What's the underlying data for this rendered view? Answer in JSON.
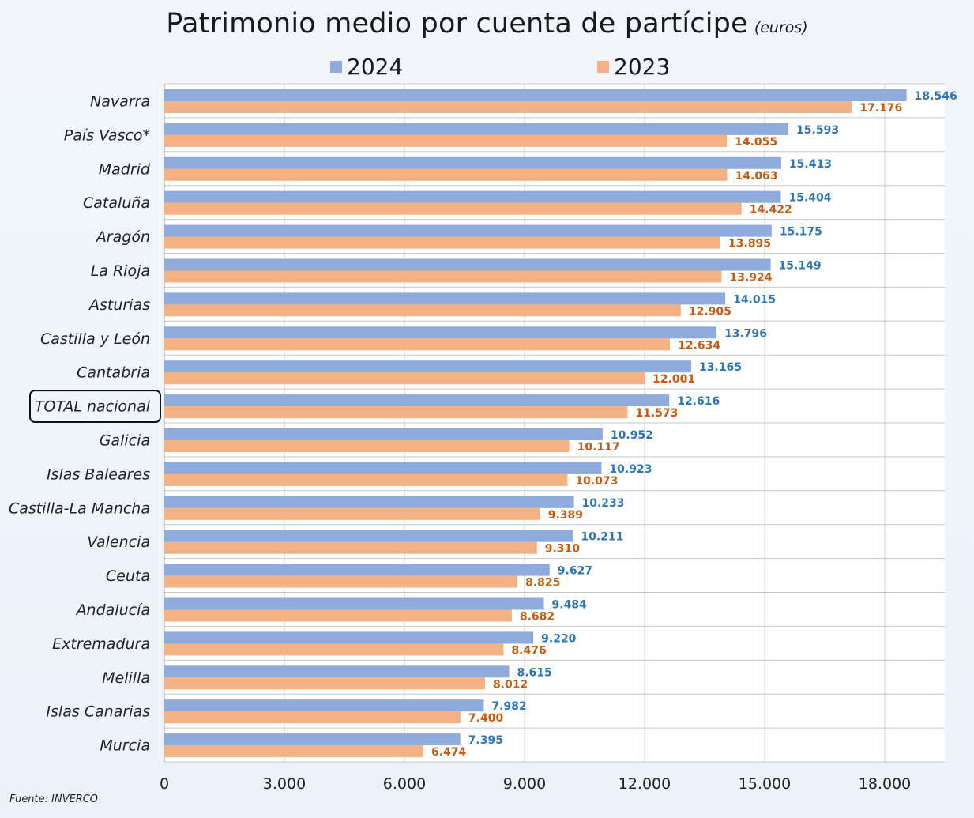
{
  "chart_data": {
    "type": "bar",
    "orientation": "horizontal",
    "title": "Patrimonio medio por cuenta de partícipe",
    "title_unit": "(euros)",
    "categories": [
      "Navarra",
      "País Vasco*",
      "Madrid",
      "Cataluña",
      "Aragón",
      "La Rioja",
      "Asturias",
      "Castilla y León",
      "Cantabria",
      "TOTAL nacional",
      "Galicia",
      "Islas Baleares",
      "Castilla-La Mancha",
      "Valencia",
      "Ceuta",
      "Andalucía",
      "Extremadura",
      "Melilla",
      "Islas Canarias",
      "Murcia"
    ],
    "highlighted_category": "TOTAL nacional",
    "series": [
      {
        "name": "2024",
        "color": "#8faadc",
        "label_color": "#2e75b6",
        "values": [
          18546,
          15593,
          15413,
          15404,
          15175,
          15149,
          14015,
          13796,
          13165,
          12616,
          10952,
          10923,
          10233,
          10211,
          9627,
          9484,
          9220,
          8615,
          7982,
          7395
        ],
        "labels": [
          "18.546",
          "15.593",
          "15.413",
          "15.404",
          "15.175",
          "15.149",
          "14.015",
          "13.796",
          "13.165",
          "12.616",
          "10.952",
          "10.923",
          "10.233",
          "10.211",
          "9.627",
          "9.484",
          "9.220",
          "8.615",
          "7.982",
          "7.395"
        ]
      },
      {
        "name": "2023",
        "color": "#f4b183",
        "label_color": "#c55a11",
        "values": [
          17176,
          14055,
          14063,
          14422,
          13895,
          13924,
          12905,
          12634,
          12001,
          11573,
          10117,
          10073,
          9389,
          9310,
          8825,
          8682,
          8476,
          8012,
          7400,
          6474
        ],
        "labels": [
          "17.176",
          "14.055",
          "14.063",
          "14.422",
          "13.895",
          "13.924",
          "12.905",
          "12.634",
          "12.001",
          "11.573",
          "10.117",
          "10.073",
          "9.389",
          "9.310",
          "8.825",
          "8.682",
          "8.476",
          "8.012",
          "7.400",
          "6.474"
        ]
      }
    ],
    "xlim": [
      0,
      19500
    ],
    "xticks": [
      0,
      3000,
      6000,
      9000,
      12000,
      15000,
      18000
    ],
    "xtick_labels": [
      "0",
      "3.000",
      "6.000",
      "9.000",
      "12.000",
      "15.000",
      "18.000"
    ],
    "grid": true,
    "legend_position": "top"
  },
  "source": "Fuente: INVERCO"
}
